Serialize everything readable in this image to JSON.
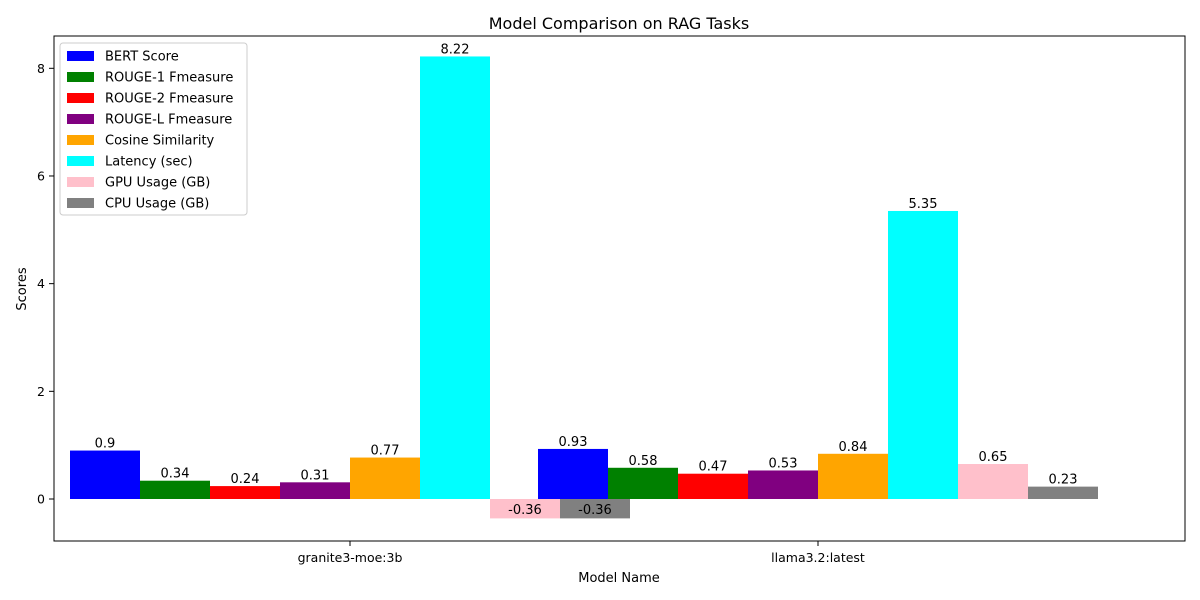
{
  "chart_data": {
    "type": "bar",
    "title": "Model Comparison on RAG Tasks",
    "xlabel": "Model Name",
    "ylabel": "Scores",
    "categories": [
      "granite3-moe:3b",
      "llama3.2:latest"
    ],
    "ylim": [
      -0.78,
      8.6
    ],
    "yticks": [
      0,
      2,
      4,
      6,
      8
    ],
    "legend_position": "top-left",
    "grid": false,
    "series": [
      {
        "name": "BERT Score",
        "color": "#0000ff",
        "values": [
          0.9,
          0.93
        ],
        "labels": [
          "0.9",
          "0.93"
        ]
      },
      {
        "name": "ROUGE-1 Fmeasure",
        "color": "#008000",
        "values": [
          0.34,
          0.58
        ],
        "labels": [
          "0.34",
          "0.58"
        ]
      },
      {
        "name": "ROUGE-2 Fmeasure",
        "color": "#ff0000",
        "values": [
          0.24,
          0.47
        ],
        "labels": [
          "0.24",
          "0.47"
        ]
      },
      {
        "name": "ROUGE-L Fmeasure",
        "color": "#800080",
        "values": [
          0.31,
          0.53
        ],
        "labels": [
          "0.31",
          "0.53"
        ]
      },
      {
        "name": "Cosine Similarity",
        "color": "#ffa500",
        "values": [
          0.77,
          0.84
        ],
        "labels": [
          "0.77",
          "0.84"
        ]
      },
      {
        "name": "Latency (sec)",
        "color": "#00ffff",
        "values": [
          8.22,
          5.35
        ],
        "labels": [
          "8.22",
          "5.35"
        ]
      },
      {
        "name": "GPU Usage (GB)",
        "color": "#ffc0cb",
        "values": [
          -0.36,
          0.65
        ],
        "labels": [
          "-0.36",
          "0.65"
        ]
      },
      {
        "name": "CPU Usage (GB)",
        "color": "#808080",
        "values": [
          -0.36,
          0.23
        ],
        "labels": [
          "-0.36",
          "0.23"
        ]
      }
    ]
  }
}
